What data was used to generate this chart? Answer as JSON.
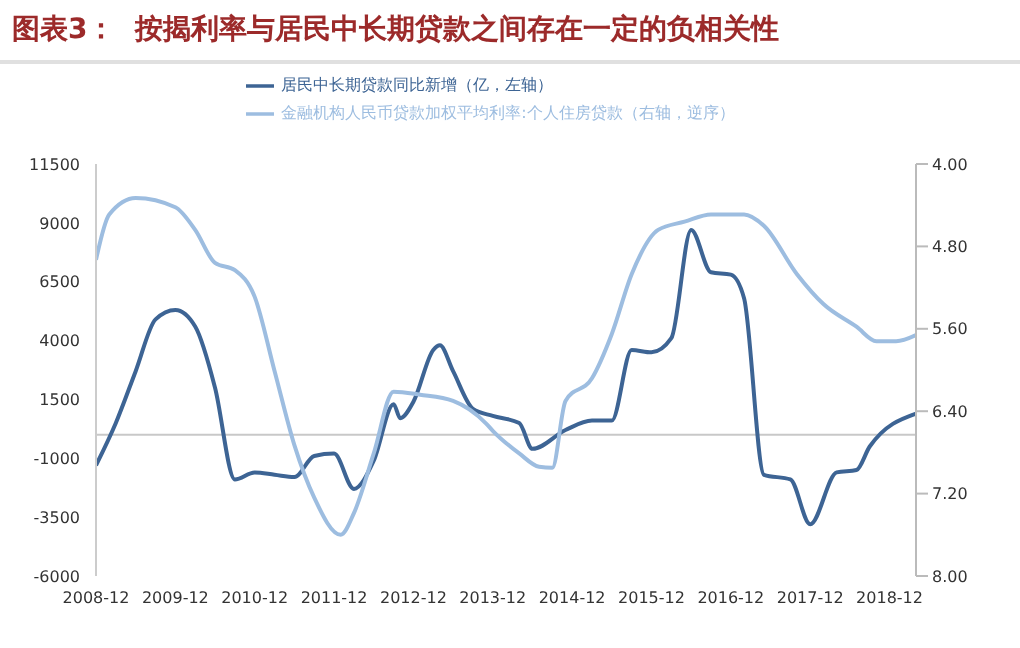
{
  "chart_data": {
    "type": "line",
    "title": "图表3：  按揭利率与居民中长期贷款之间存在一定的负相关性",
    "xlim": [
      "2008-12",
      "2019-04"
    ],
    "xticks": [
      "2008-12",
      "2009-12",
      "2010-12",
      "2011-12",
      "2012-12",
      "2013-12",
      "2014-12",
      "2015-12",
      "2016-12",
      "2017-12",
      "2018-12"
    ],
    "ylim": [
      -6000,
      11500
    ],
    "yticks": [
      -6000,
      -3500,
      -1000,
      1500,
      4000,
      6500,
      9000,
      11500
    ],
    "y2lim": [
      8,
      4
    ],
    "y2ticks": [
      {
        "value": 4,
        "label": "4.00"
      },
      {
        "value": 4.8,
        "label": "4.80"
      },
      {
        "value": 5.6,
        "label": "5.60"
      },
      {
        "value": 6.4,
        "label": "6.40"
      },
      {
        "value": 7.2,
        "label": "7.20"
      },
      {
        "value": 8,
        "label": "8.00"
      }
    ],
    "legend": "top",
    "series": [
      {
        "name": "居民中长期贷款同比新增（亿，左轴）",
        "color": "#3d6494",
        "x": [
          "2008-12",
          "2009-03",
          "2009-06",
          "2009-09",
          "2009-12",
          "2010-03",
          "2010-06",
          "2010-09",
          "2010-12",
          "2011-03",
          "2011-06",
          "2011-09",
          "2011-12",
          "2012-03",
          "2012-06",
          "2012-09",
          "2012-10",
          "2012-12",
          "2013-03",
          "2013-04",
          "2013-06",
          "2013-09",
          "2013-12",
          "2014-04",
          "2014-06",
          "2014-11",
          "2015-03",
          "2015-06",
          "2015-09",
          "2015-12",
          "2016-03",
          "2016-06",
          "2016-09",
          "2016-12",
          "2017-02",
          "2017-05",
          "2017-09",
          "2017-12",
          "2018-04",
          "2018-07",
          "2018-09",
          "2019-04"
        ],
        "values": [
          -1300,
          500,
          2700,
          4900,
          5300,
          4600,
          2000,
          -1900,
          -1600,
          -1700,
          -1800,
          -900,
          -800,
          -2300,
          -1100,
          1300,
          700,
          1400,
          3600,
          3800,
          2700,
          1100,
          800,
          500,
          -600,
          200,
          600,
          600,
          3600,
          3500,
          4100,
          8700,
          6900,
          6800,
          5800,
          -1700,
          -1900,
          -3800,
          -1600,
          -1500,
          -500,
          900
        ]
      },
      {
        "name": "金融机构人民币贷款加权平均利率:个人住房贷款（右轴，逆序）",
        "color": "#9dbde0",
        "axis": "y2",
        "x": [
          "2008-12",
          "2009-02",
          "2009-06",
          "2009-12",
          "2010-03",
          "2010-06",
          "2010-09",
          "2010-12",
          "2011-03",
          "2011-06",
          "2011-09",
          "2012-01",
          "2012-03",
          "2012-06",
          "2012-09",
          "2013-01",
          "2013-06",
          "2013-11",
          "2013-12",
          "2014-04",
          "2014-07",
          "2014-09",
          "2014-11",
          "2015-03",
          "2015-06",
          "2015-09",
          "2016-01",
          "2016-05",
          "2016-09",
          "2017-02",
          "2017-05",
          "2017-10",
          "2018-02",
          "2018-07",
          "2018-10",
          "2019-01",
          "2019-04"
        ],
        "values": [
          4.93,
          4.49,
          4.33,
          4.42,
          4.64,
          4.96,
          5.03,
          5.29,
          6.01,
          6.73,
          7.24,
          7.6,
          7.39,
          6.81,
          6.21,
          6.24,
          6.3,
          6.52,
          6.59,
          6.81,
          6.94,
          6.95,
          6.3,
          6.08,
          5.65,
          5.07,
          4.64,
          4.56,
          4.49,
          4.49,
          4.6,
          5.07,
          5.36,
          5.58,
          5.72,
          5.72,
          5.66
        ]
      }
    ]
  }
}
